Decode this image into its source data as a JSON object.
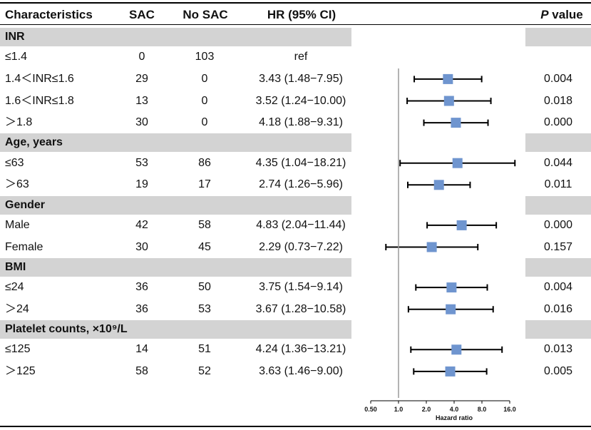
{
  "chart_data": {
    "type": "forest",
    "columns": {
      "characteristics": "Characteristics",
      "sac": "SAC",
      "no_sac": "No SAC",
      "hr": "HR (95% CI)",
      "p_prefix": "P",
      "p_suffix": " value"
    },
    "groups": [
      {
        "label": "INR",
        "rows": [
          {
            "label": "≤1.4",
            "sac": "0",
            "no_sac": "103",
            "hr_text": "ref",
            "hr": null,
            "lo": null,
            "hi": null,
            "p": ""
          },
          {
            "label": "1.4＜INR≤1.6",
            "sac": "29",
            "no_sac": "0",
            "hr_text": "3.43 (1.48−7.95)",
            "hr": 3.43,
            "lo": 1.48,
            "hi": 7.95,
            "p": "0.004"
          },
          {
            "label": "1.6＜INR≤1.8",
            "sac": "13",
            "no_sac": "0",
            "hr_text": "3.52 (1.24−10.00)",
            "hr": 3.52,
            "lo": 1.24,
            "hi": 10.0,
            "p": "0.018"
          },
          {
            "label": "＞1.8",
            "sac": "30",
            "no_sac": "0",
            "hr_text": "4.18 (1.88−9.31)",
            "hr": 4.18,
            "lo": 1.88,
            "hi": 9.31,
            "p": "0.000"
          }
        ]
      },
      {
        "label": "Age, years",
        "rows": [
          {
            "label": "≤63",
            "sac": "53",
            "no_sac": "86",
            "hr_text": "4.35 (1.04−18.21)",
            "hr": 4.35,
            "lo": 1.04,
            "hi": 18.21,
            "p": "0.044"
          },
          {
            "label": "＞63",
            "sac": "19",
            "no_sac": "17",
            "hr_text": "2.74 (1.26−5.96)",
            "hr": 2.74,
            "lo": 1.26,
            "hi": 5.96,
            "p": "0.011"
          }
        ]
      },
      {
        "label": "Gender",
        "rows": [
          {
            "label": "Male",
            "sac": "42",
            "no_sac": "58",
            "hr_text": "4.83 (2.04−11.44)",
            "hr": 4.83,
            "lo": 2.04,
            "hi": 11.44,
            "p": "0.000"
          },
          {
            "label": "Female",
            "sac": "30",
            "no_sac": "45",
            "hr_text": "2.29 (0.73−7.22)",
            "hr": 2.29,
            "lo": 0.73,
            "hi": 7.22,
            "p": "0.157"
          }
        ]
      },
      {
        "label": "BMI",
        "rows": [
          {
            "label": "≤24",
            "sac": "36",
            "no_sac": "50",
            "hr_text": "3.75 (1.54−9.14)",
            "hr": 3.75,
            "lo": 1.54,
            "hi": 9.14,
            "p": "0.004"
          },
          {
            "label": "＞24",
            "sac": "36",
            "no_sac": "53",
            "hr_text": "3.67 (1.28−10.58)",
            "hr": 3.67,
            "lo": 1.28,
            "hi": 10.58,
            "p": "0.016"
          }
        ]
      },
      {
        "label": "Platelet counts, ×10⁹/L",
        "rows": [
          {
            "label": "≤125",
            "sac": "14",
            "no_sac": "51",
            "hr_text": "4.24 (1.36−13.21)",
            "hr": 4.24,
            "lo": 1.36,
            "hi": 13.21,
            "p": "0.013"
          },
          {
            "label": "＞125",
            "sac": "58",
            "no_sac": "52",
            "hr_text": "3.63 (1.46−9.00)",
            "hr": 3.63,
            "lo": 1.46,
            "hi": 9.0,
            "p": "0.005"
          }
        ]
      }
    ],
    "x_axis": {
      "scale": "log2",
      "ticks": [
        0.5,
        1.0,
        2.0,
        4.0,
        8.0,
        16.0
      ],
      "tick_labels": [
        "0.50",
        "1.0",
        "2.0",
        "4.0",
        "8.0",
        "16.0"
      ],
      "xlim": [
        0.5,
        16.0
      ],
      "title": "Hazard ratio",
      "reference_line": 1.0
    },
    "colors": {
      "marker": "#6f95cf",
      "band": "#d3d3d3",
      "line": "#000000",
      "reference": "#9a9a9a"
    }
  }
}
